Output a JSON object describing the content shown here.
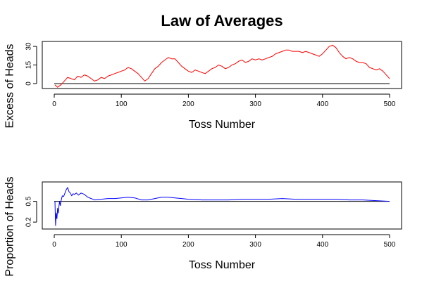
{
  "figure": {
    "title": "Law of Averages"
  },
  "chart_data": [
    {
      "type": "line",
      "title": "Law of Averages",
      "xlabel": "Toss Number",
      "ylabel": "Excess of Heads",
      "xlim": [
        0,
        500
      ],
      "ylim": [
        -4,
        34
      ],
      "xticks": [
        0,
        100,
        200,
        300,
        400,
        500
      ],
      "yticks": [
        0,
        15,
        30
      ],
      "reference_line": 0,
      "grid": false,
      "legend": "none",
      "series": [
        {
          "color": "#ff0000",
          "x": [
            1,
            5,
            10,
            15,
            20,
            25,
            30,
            35,
            40,
            45,
            50,
            55,
            60,
            65,
            70,
            75,
            80,
            85,
            90,
            95,
            100,
            105,
            110,
            115,
            120,
            125,
            130,
            135,
            140,
            145,
            150,
            155,
            160,
            165,
            170,
            175,
            180,
            185,
            190,
            195,
            200,
            205,
            210,
            215,
            220,
            225,
            230,
            235,
            240,
            245,
            250,
            255,
            260,
            265,
            270,
            275,
            280,
            285,
            290,
            295,
            300,
            305,
            310,
            315,
            320,
            325,
            330,
            335,
            340,
            345,
            350,
            355,
            360,
            365,
            370,
            375,
            380,
            385,
            390,
            395,
            400,
            405,
            410,
            415,
            420,
            425,
            430,
            435,
            440,
            445,
            450,
            455,
            460,
            465,
            470,
            475,
            480,
            485,
            490,
            495,
            500
          ],
          "y": [
            -1,
            -3,
            -1,
            2,
            5,
            4,
            3,
            6,
            5,
            7,
            6,
            4,
            2,
            3,
            5,
            4,
            6,
            7,
            8,
            9,
            10,
            11,
            13,
            12,
            10,
            8,
            5,
            2,
            4,
            8,
            12,
            14,
            17,
            19,
            21,
            20,
            20,
            17,
            14,
            12,
            10,
            9,
            11,
            10,
            9,
            8,
            10,
            12,
            13,
            15,
            14,
            12,
            13,
            15,
            16,
            18,
            19,
            17,
            18,
            20,
            19,
            20,
            19,
            20,
            21,
            22,
            24,
            25,
            26,
            27,
            27,
            26,
            26,
            26,
            25,
            26,
            25,
            24,
            23,
            22,
            24,
            27,
            30,
            31,
            29,
            25,
            22,
            20,
            21,
            20,
            18,
            17,
            17,
            16,
            13,
            12,
            11,
            12,
            10,
            7,
            4
          ]
        }
      ]
    },
    {
      "type": "line",
      "title": "",
      "xlabel": "Toss Number",
      "ylabel": "Proportion of Heads",
      "xlim": [
        0,
        500
      ],
      "ylim": [
        0.1,
        0.78
      ],
      "xticks": [
        0,
        100,
        200,
        300,
        400,
        500
      ],
      "yticks": [
        0.2,
        0.5
      ],
      "reference_line": 0.5,
      "grid": false,
      "legend": "none",
      "series": [
        {
          "color": "#0000ff",
          "x": [
            1,
            2,
            3,
            4,
            5,
            6,
            7,
            8,
            9,
            10,
            12,
            14,
            16,
            18,
            20,
            22,
            24,
            26,
            28,
            30,
            33,
            36,
            40,
            45,
            50,
            55,
            60,
            70,
            80,
            90,
            100,
            110,
            120,
            130,
            140,
            150,
            160,
            170,
            180,
            190,
            200,
            220,
            240,
            260,
            280,
            300,
            320,
            340,
            360,
            380,
            400,
            420,
            440,
            460,
            480,
            500
          ],
          "y": [
            0.5,
            0.15,
            0.33,
            0.25,
            0.4,
            0.33,
            0.43,
            0.5,
            0.44,
            0.5,
            0.58,
            0.57,
            0.62,
            0.67,
            0.7,
            0.64,
            0.62,
            0.58,
            0.61,
            0.6,
            0.62,
            0.59,
            0.62,
            0.6,
            0.56,
            0.54,
            0.52,
            0.53,
            0.54,
            0.54,
            0.55,
            0.56,
            0.55,
            0.52,
            0.52,
            0.54,
            0.56,
            0.56,
            0.55,
            0.54,
            0.53,
            0.52,
            0.52,
            0.52,
            0.53,
            0.53,
            0.53,
            0.54,
            0.53,
            0.53,
            0.53,
            0.53,
            0.52,
            0.52,
            0.51,
            0.5
          ]
        }
      ]
    }
  ]
}
